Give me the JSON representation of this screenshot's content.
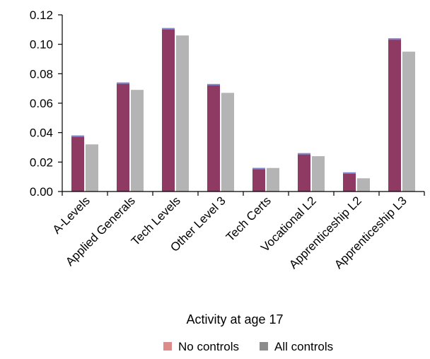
{
  "chart_data": {
    "type": "bar",
    "title": "",
    "xlabel": "Activity at age 17",
    "ylabel": "",
    "ylim": [
      0,
      0.12
    ],
    "yticks": [
      0.0,
      0.02,
      0.04,
      0.06,
      0.08,
      0.1,
      0.12
    ],
    "ytick_labels": [
      "0.00",
      "0.02",
      "0.04",
      "0.06",
      "0.08",
      "0.10",
      "0.12"
    ],
    "grid": false,
    "legend_position": "bottom",
    "categories": [
      "A-Levels",
      "Applied Generals",
      "Tech Levels",
      "Other Level 3",
      "Tech Certs",
      "Vocational L2",
      "Apprenticeship L2",
      "Apprenticeship L3"
    ],
    "series": [
      {
        "name": "No controls",
        "color": "#8e3a62",
        "legend_color": "#dd8a8a",
        "values": [
          0.038,
          0.074,
          0.111,
          0.073,
          0.016,
          0.026,
          0.013,
          0.104
        ]
      },
      {
        "name": "All controls",
        "color": "#b4b4b4",
        "legend_color": "#8c8c8c",
        "values": [
          0.032,
          0.069,
          0.106,
          0.067,
          0.016,
          0.024,
          0.009,
          0.095
        ]
      }
    ]
  }
}
